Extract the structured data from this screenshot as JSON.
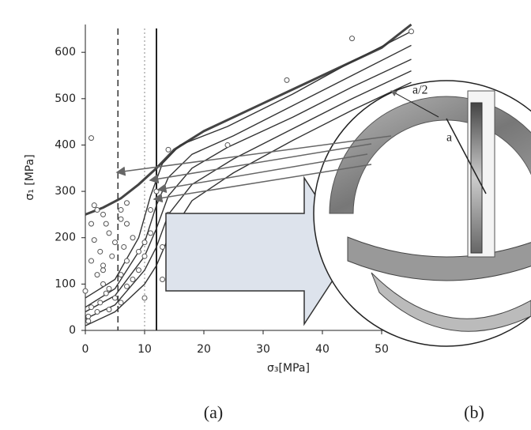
{
  "chart_data": {
    "type": "scatter-line",
    "xlabel": "σ₃[MPa]",
    "ylabel": "σ₁ [MPa]",
    "xlim": [
      0,
      56
    ],
    "ylim": [
      0,
      660
    ],
    "xticks": [
      0,
      10,
      20,
      30,
      40,
      50
    ],
    "yticks": [
      0,
      100,
      200,
      300,
      400,
      500,
      600
    ],
    "vlines": [
      5.5,
      10,
      12
    ],
    "points": {
      "color": "#555",
      "x": [
        0,
        0.5,
        1,
        1,
        1.5,
        2,
        2,
        2.5,
        3,
        3,
        3,
        3.5,
        4,
        4,
        4.5,
        5,
        5,
        6,
        6,
        6,
        6.5,
        7,
        7,
        7,
        8,
        8,
        9,
        9,
        10,
        10,
        10,
        11,
        11,
        12,
        13,
        13,
        14,
        14,
        24,
        34,
        45,
        55,
        0.5,
        1,
        2,
        3,
        4,
        1.5,
        2.5,
        3.5,
        6,
        7,
        1
      ],
      "values": [
        85,
        20,
        50,
        150,
        195,
        40,
        120,
        170,
        100,
        250,
        130,
        80,
        210,
        45,
        160,
        190,
        70,
        240,
        120,
        60,
        180,
        230,
        95,
        150,
        110,
        200,
        130,
        170,
        160,
        190,
        70,
        210,
        260,
        300,
        180,
        110,
        250,
        390,
        400,
        540,
        630,
        645,
        30,
        230,
        260,
        140,
        90,
        270,
        60,
        230,
        260,
        275,
        415
      ]
    },
    "series": [
      {
        "color": "#444",
        "width": 3,
        "x": [
          0,
          3,
          6,
          9,
          12,
          15,
          20,
          30,
          40,
          50,
          55
        ],
        "values": [
          250,
          265,
          285,
          315,
          350,
          390,
          430,
          490,
          550,
          610,
          660
        ]
      },
      {
        "color": "#333",
        "width": 1.4,
        "x": [
          0,
          5,
          9,
          11,
          13,
          16,
          24,
          35,
          45,
          55
        ],
        "values": [
          70,
          110,
          200,
          290,
          360,
          400,
          440,
          510,
          580,
          645
        ]
      },
      {
        "color": "#333",
        "width": 1.4,
        "x": [
          0,
          5,
          10,
          12,
          14,
          18,
          25,
          35,
          45,
          55
        ],
        "values": [
          50,
          90,
          190,
          270,
          330,
          380,
          420,
          485,
          550,
          615
        ]
      },
      {
        "color": "#333",
        "width": 1.4,
        "x": [
          0,
          5,
          10,
          12,
          14,
          18,
          24,
          35,
          45,
          55
        ],
        "values": [
          40,
          75,
          160,
          220,
          290,
          350,
          395,
          460,
          525,
          585
        ]
      },
      {
        "color": "#333",
        "width": 1.4,
        "x": [
          0,
          5,
          10,
          12,
          14,
          18,
          25,
          35,
          45,
          55
        ],
        "values": [
          25,
          55,
          130,
          180,
          250,
          315,
          370,
          435,
          500,
          560
        ]
      },
      {
        "color": "#333",
        "width": 1.4,
        "x": [
          0,
          5,
          10,
          12,
          14,
          18,
          25,
          35,
          45,
          55
        ],
        "values": [
          10,
          40,
          100,
          140,
          200,
          280,
          340,
          410,
          475,
          535
        ]
      }
    ],
    "panel_a": "(a)",
    "panel_b": "(b)",
    "label_a": "a",
    "label_half": "a/2"
  }
}
